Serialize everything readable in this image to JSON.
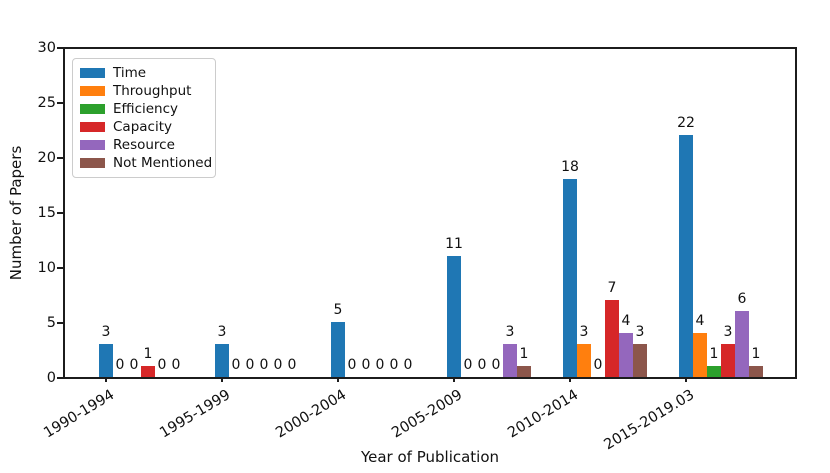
{
  "chart_data": {
    "type": "bar",
    "title": "",
    "xlabel": "Year of Publication",
    "ylabel": "Number of Papers",
    "ylim": [
      0,
      30
    ],
    "yticks": [
      0,
      5,
      10,
      15,
      20,
      25,
      30
    ],
    "categories": [
      "1990-1994",
      "1995-1999",
      "2000-2004",
      "2005-2009",
      "2010-2014",
      "2015-2019.03"
    ],
    "series": [
      {
        "name": "Time",
        "color": "#1f77b4",
        "values": [
          3,
          3,
          5,
          11,
          18,
          22
        ]
      },
      {
        "name": "Throughput",
        "color": "#ff7f0e",
        "values": [
          0,
          0,
          0,
          0,
          3,
          4
        ]
      },
      {
        "name": "Efficiency",
        "color": "#2ca02c",
        "values": [
          0,
          0,
          0,
          0,
          0,
          1
        ]
      },
      {
        "name": "Capacity",
        "color": "#d62728",
        "values": [
          1,
          0,
          0,
          0,
          7,
          3
        ]
      },
      {
        "name": "Resource",
        "color": "#9467bd",
        "values": [
          0,
          0,
          0,
          3,
          4,
          6
        ]
      },
      {
        "name": "Not Mentioned",
        "color": "#8c564b",
        "values": [
          0,
          0,
          0,
          1,
          3,
          1
        ]
      }
    ],
    "legend_position": "upper-left",
    "grid": false,
    "bar_value_labels": true,
    "axis_color": "#1c1c1c"
  }
}
